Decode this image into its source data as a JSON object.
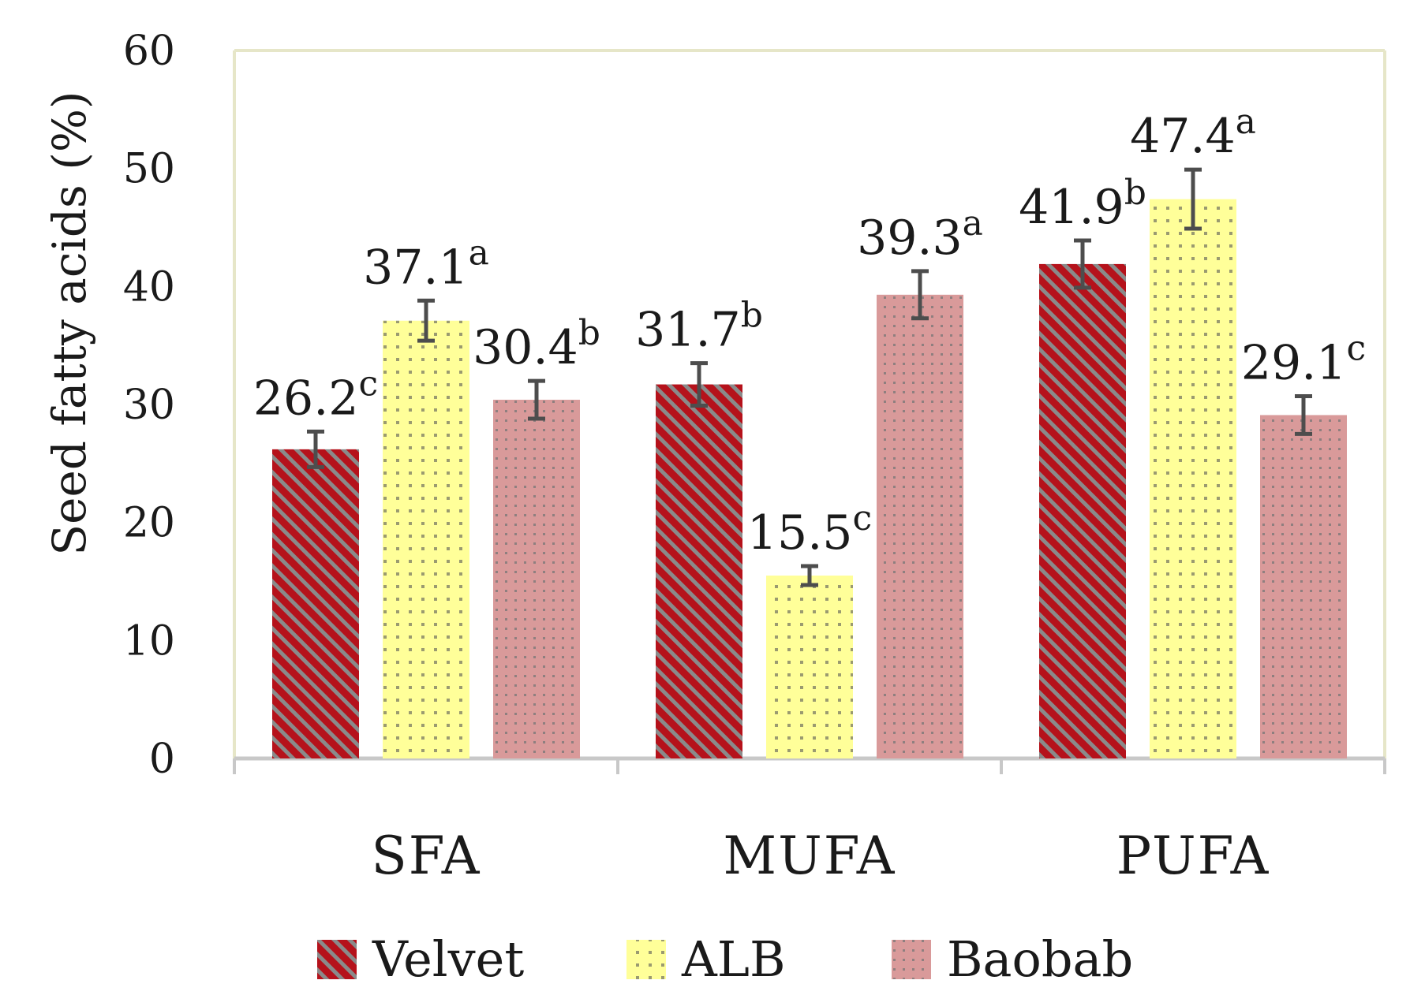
{
  "chart_data": {
    "type": "bar",
    "title": "",
    "xlabel": "",
    "ylabel": "Seed fatty acids (%)",
    "ylim": [
      0,
      60
    ],
    "yticks": [
      0,
      10,
      20,
      30,
      40,
      50,
      60
    ],
    "grid": false,
    "legend_position": "bottom",
    "categories": [
      "SFA",
      "MUFA",
      "PUFA"
    ],
    "series": [
      {
        "name": "Velvet",
        "color": "#b5121b",
        "pattern": "diagonal-stripes",
        "values": [
          26.2,
          31.7,
          41.9
        ],
        "errors": [
          1.5,
          1.8,
          2.0
        ],
        "labels": [
          "26.2",
          "31.7",
          "41.9"
        ],
        "letters": [
          "c",
          "b",
          "b"
        ]
      },
      {
        "name": "ALB",
        "color": "#ffff99",
        "pattern": "dots",
        "values": [
          37.1,
          15.5,
          47.4
        ],
        "errors": [
          1.7,
          0.8,
          2.5
        ],
        "labels": [
          "37.1",
          "15.5",
          "47.4"
        ],
        "letters": [
          "a",
          "c",
          "a"
        ]
      },
      {
        "name": "Baobab",
        "color": "#d99a9a",
        "pattern": "fine-dots",
        "values": [
          30.4,
          39.3,
          29.1
        ],
        "errors": [
          1.6,
          2.0,
          1.6
        ],
        "labels": [
          "30.4",
          "39.3",
          "29.1"
        ],
        "letters": [
          "b",
          "a",
          "c"
        ]
      }
    ]
  }
}
